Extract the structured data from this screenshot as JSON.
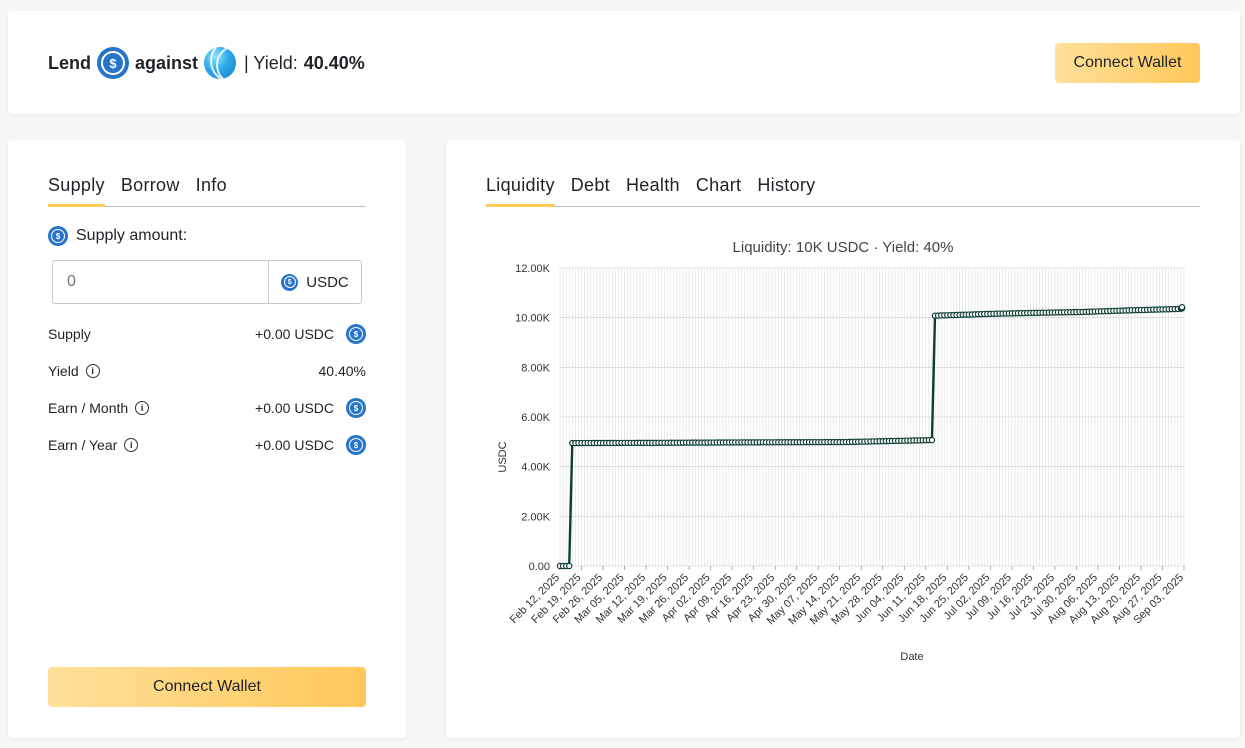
{
  "header": {
    "lend_label": "Lend",
    "against_label": "against",
    "yield_label": "| Yield:",
    "yield_value": "40.40%",
    "connect_wallet": "Connect Wallet"
  },
  "left_panel": {
    "tabs": [
      "Supply",
      "Borrow",
      "Info"
    ],
    "supply_amount_label": "Supply amount:",
    "input_placeholder": "0",
    "input_unit": "USDC",
    "rows": [
      {
        "label": "Supply",
        "value": "+0.00 USDC",
        "info": false,
        "coin": true
      },
      {
        "label": "Yield",
        "value": "40.40%",
        "info": true,
        "coin": false
      },
      {
        "label": "Earn / Month",
        "value": "+0.00 USDC",
        "info": true,
        "coin": true
      },
      {
        "label": "Earn / Year",
        "value": "+0.00 USDC",
        "info": true,
        "coin": true
      }
    ],
    "connect_wallet": "Connect Wallet"
  },
  "right_panel": {
    "tabs": [
      "Liquidity",
      "Debt",
      "Health",
      "Chart",
      "History"
    ]
  },
  "chart_data": {
    "type": "line",
    "title": "Liquidity: 10K USDC · Yield: 40%",
    "xlabel": "Date",
    "ylabel": "USDC",
    "ylim": [
      0,
      12000
    ],
    "yticks": [
      "0.00",
      "2.00K",
      "4.00K",
      "6.00K",
      "8.00K",
      "10.00K",
      "12.00K"
    ],
    "xticks": [
      "Feb 12, 2025",
      "Feb 19, 2025",
      "Feb 26, 2025",
      "Mar 05, 2025",
      "Mar 12, 2025",
      "Mar 19, 2025",
      "Mar 26, 2025",
      "Apr 02, 2025",
      "Apr 09, 2025",
      "Apr 16, 2025",
      "Apr 23, 2025",
      "Apr 30, 2025",
      "May 07, 2025",
      "May 14, 2025",
      "May 21, 2025",
      "May 28, 2025",
      "Jun 04, 2025",
      "Jun 11, 2025",
      "Jun 18, 2025",
      "Jun 25, 2025",
      "Jul 02, 2025",
      "Jul 09, 2025",
      "Jul 16, 2025",
      "Jul 23, 2025",
      "Jul 30, 2025",
      "Aug 06, 2025",
      "Aug 13, 2025",
      "Aug 20, 2025",
      "Aug 27, 2025",
      "Sep 03, 2025"
    ],
    "grid": true,
    "color": "#0f3d36",
    "series": [
      {
        "x": [
          "2025-02-12",
          "2025-02-15",
          "2025-02-16",
          "2025-03-15",
          "2025-04-15",
          "2025-05-15",
          "2025-06-13",
          "2025-06-14",
          "2025-07-01",
          "2025-07-15",
          "2025-08-01",
          "2025-08-15",
          "2025-09-01",
          "2025-09-07"
        ],
        "values": [
          0,
          0,
          4950,
          4960,
          4980,
          4990,
          5070,
          10080,
          10150,
          10190,
          10230,
          10290,
          10350,
          10420
        ]
      }
    ]
  }
}
